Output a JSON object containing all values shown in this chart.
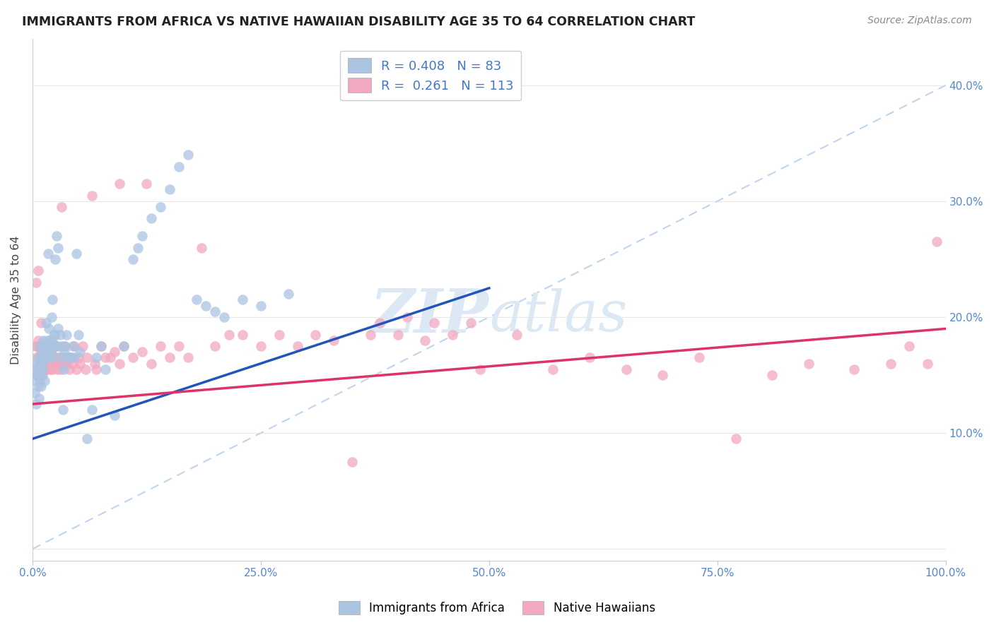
{
  "title": "IMMIGRANTS FROM AFRICA VS NATIVE HAWAIIAN DISABILITY AGE 35 TO 64 CORRELATION CHART",
  "source": "Source: ZipAtlas.com",
  "ylabel": "Disability Age 35 to 64",
  "legend_label1": "Immigrants from Africa",
  "legend_label2": "Native Hawaiians",
  "r1": 0.408,
  "n1": 83,
  "r2": 0.261,
  "n2": 113,
  "color_blue": "#aac4e2",
  "color_pink": "#f2a8c0",
  "line_blue": "#2255bb",
  "line_pink": "#dd3366",
  "diagonal_color": "#c0d4ee",
  "watermark_color": "#dde8f5",
  "background": "#ffffff",
  "grid_color": "#dde8f0",
  "xlim": [
    0,
    1.0
  ],
  "ylim": [
    -0.01,
    0.44
  ],
  "ytick_vals": [
    0.0,
    0.1,
    0.2,
    0.3,
    0.4
  ],
  "ytick_labels": [
    "",
    "10.0%",
    "20.0%",
    "30.0%",
    "40.0%"
  ],
  "xtick_vals": [
    0.0,
    0.25,
    0.5,
    0.75,
    1.0
  ],
  "xtick_labels": [
    "0.0%",
    "25.0%",
    "50.0%",
    "75.0%",
    "100.0%"
  ],
  "blue_line_x0": 0.0,
  "blue_line_y0": 0.095,
  "blue_line_x1": 0.5,
  "blue_line_y1": 0.225,
  "pink_line_x0": 0.0,
  "pink_line_y0": 0.125,
  "pink_line_x1": 1.0,
  "pink_line_y1": 0.19,
  "blue_pts": [
    [
      0.002,
      0.135
    ],
    [
      0.003,
      0.145
    ],
    [
      0.004,
      0.125
    ],
    [
      0.004,
      0.155
    ],
    [
      0.005,
      0.15
    ],
    [
      0.005,
      0.16
    ],
    [
      0.006,
      0.14
    ],
    [
      0.006,
      0.165
    ],
    [
      0.007,
      0.13
    ],
    [
      0.007,
      0.155
    ],
    [
      0.008,
      0.145
    ],
    [
      0.008,
      0.175
    ],
    [
      0.009,
      0.14
    ],
    [
      0.009,
      0.16
    ],
    [
      0.01,
      0.15
    ],
    [
      0.01,
      0.17
    ],
    [
      0.011,
      0.16
    ],
    [
      0.011,
      0.155
    ],
    [
      0.012,
      0.165
    ],
    [
      0.012,
      0.18
    ],
    [
      0.013,
      0.175
    ],
    [
      0.013,
      0.145
    ],
    [
      0.014,
      0.17
    ],
    [
      0.015,
      0.195
    ],
    [
      0.015,
      0.165
    ],
    [
      0.016,
      0.18
    ],
    [
      0.017,
      0.255
    ],
    [
      0.017,
      0.17
    ],
    [
      0.018,
      0.165
    ],
    [
      0.018,
      0.19
    ],
    [
      0.019,
      0.175
    ],
    [
      0.019,
      0.18
    ],
    [
      0.02,
      0.17
    ],
    [
      0.02,
      0.165
    ],
    [
      0.021,
      0.2
    ],
    [
      0.022,
      0.215
    ],
    [
      0.022,
      0.18
    ],
    [
      0.023,
      0.185
    ],
    [
      0.024,
      0.175
    ],
    [
      0.025,
      0.185
    ],
    [
      0.025,
      0.25
    ],
    [
      0.026,
      0.27
    ],
    [
      0.027,
      0.175
    ],
    [
      0.028,
      0.26
    ],
    [
      0.028,
      0.19
    ],
    [
      0.03,
      0.165
    ],
    [
      0.03,
      0.185
    ],
    [
      0.032,
      0.175
    ],
    [
      0.033,
      0.12
    ],
    [
      0.034,
      0.155
    ],
    [
      0.035,
      0.17
    ],
    [
      0.036,
      0.175
    ],
    [
      0.037,
      0.185
    ],
    [
      0.038,
      0.165
    ],
    [
      0.04,
      0.165
    ],
    [
      0.042,
      0.165
    ],
    [
      0.044,
      0.175
    ],
    [
      0.046,
      0.165
    ],
    [
      0.048,
      0.255
    ],
    [
      0.05,
      0.185
    ],
    [
      0.052,
      0.17
    ],
    [
      0.06,
      0.095
    ],
    [
      0.065,
      0.12
    ],
    [
      0.07,
      0.165
    ],
    [
      0.075,
      0.175
    ],
    [
      0.08,
      0.155
    ],
    [
      0.09,
      0.115
    ],
    [
      0.1,
      0.175
    ],
    [
      0.11,
      0.25
    ],
    [
      0.115,
      0.26
    ],
    [
      0.12,
      0.27
    ],
    [
      0.13,
      0.285
    ],
    [
      0.14,
      0.295
    ],
    [
      0.15,
      0.31
    ],
    [
      0.16,
      0.33
    ],
    [
      0.17,
      0.34
    ],
    [
      0.18,
      0.215
    ],
    [
      0.19,
      0.21
    ],
    [
      0.2,
      0.205
    ],
    [
      0.21,
      0.2
    ],
    [
      0.23,
      0.215
    ],
    [
      0.25,
      0.21
    ],
    [
      0.28,
      0.22
    ]
  ],
  "pink_pts": [
    [
      0.002,
      0.155
    ],
    [
      0.003,
      0.175
    ],
    [
      0.004,
      0.165
    ],
    [
      0.004,
      0.23
    ],
    [
      0.005,
      0.15
    ],
    [
      0.005,
      0.175
    ],
    [
      0.006,
      0.18
    ],
    [
      0.006,
      0.24
    ],
    [
      0.007,
      0.165
    ],
    [
      0.007,
      0.16
    ],
    [
      0.008,
      0.175
    ],
    [
      0.008,
      0.155
    ],
    [
      0.009,
      0.17
    ],
    [
      0.009,
      0.195
    ],
    [
      0.01,
      0.165
    ],
    [
      0.01,
      0.175
    ],
    [
      0.011,
      0.155
    ],
    [
      0.011,
      0.15
    ],
    [
      0.012,
      0.165
    ],
    [
      0.012,
      0.17
    ],
    [
      0.013,
      0.175
    ],
    [
      0.013,
      0.155
    ],
    [
      0.014,
      0.165
    ],
    [
      0.014,
      0.175
    ],
    [
      0.015,
      0.16
    ],
    [
      0.015,
      0.165
    ],
    [
      0.016,
      0.155
    ],
    [
      0.016,
      0.175
    ],
    [
      0.017,
      0.16
    ],
    [
      0.018,
      0.165
    ],
    [
      0.019,
      0.16
    ],
    [
      0.019,
      0.155
    ],
    [
      0.02,
      0.17
    ],
    [
      0.02,
      0.165
    ],
    [
      0.022,
      0.155
    ],
    [
      0.022,
      0.16
    ],
    [
      0.024,
      0.165
    ],
    [
      0.024,
      0.175
    ],
    [
      0.025,
      0.16
    ],
    [
      0.026,
      0.165
    ],
    [
      0.027,
      0.155
    ],
    [
      0.027,
      0.175
    ],
    [
      0.028,
      0.16
    ],
    [
      0.029,
      0.165
    ],
    [
      0.03,
      0.16
    ],
    [
      0.03,
      0.155
    ],
    [
      0.032,
      0.295
    ],
    [
      0.033,
      0.165
    ],
    [
      0.034,
      0.16
    ],
    [
      0.035,
      0.175
    ],
    [
      0.036,
      0.165
    ],
    [
      0.038,
      0.16
    ],
    [
      0.04,
      0.155
    ],
    [
      0.042,
      0.165
    ],
    [
      0.044,
      0.16
    ],
    [
      0.046,
      0.175
    ],
    [
      0.048,
      0.155
    ],
    [
      0.05,
      0.165
    ],
    [
      0.052,
      0.16
    ],
    [
      0.055,
      0.175
    ],
    [
      0.058,
      0.155
    ],
    [
      0.06,
      0.165
    ],
    [
      0.065,
      0.305
    ],
    [
      0.068,
      0.16
    ],
    [
      0.07,
      0.155
    ],
    [
      0.075,
      0.175
    ],
    [
      0.08,
      0.165
    ],
    [
      0.085,
      0.165
    ],
    [
      0.09,
      0.17
    ],
    [
      0.095,
      0.16
    ],
    [
      0.1,
      0.175
    ],
    [
      0.11,
      0.165
    ],
    [
      0.12,
      0.17
    ],
    [
      0.13,
      0.16
    ],
    [
      0.14,
      0.175
    ],
    [
      0.15,
      0.165
    ],
    [
      0.16,
      0.175
    ],
    [
      0.17,
      0.165
    ],
    [
      0.185,
      0.26
    ],
    [
      0.2,
      0.175
    ],
    [
      0.215,
      0.185
    ],
    [
      0.23,
      0.185
    ],
    [
      0.25,
      0.175
    ],
    [
      0.27,
      0.185
    ],
    [
      0.29,
      0.175
    ],
    [
      0.31,
      0.185
    ],
    [
      0.33,
      0.18
    ],
    [
      0.35,
      0.075
    ],
    [
      0.37,
      0.185
    ],
    [
      0.4,
      0.185
    ],
    [
      0.43,
      0.18
    ],
    [
      0.46,
      0.185
    ],
    [
      0.49,
      0.155
    ],
    [
      0.53,
      0.185
    ],
    [
      0.57,
      0.155
    ],
    [
      0.61,
      0.165
    ],
    [
      0.65,
      0.155
    ],
    [
      0.69,
      0.15
    ],
    [
      0.73,
      0.165
    ],
    [
      0.77,
      0.095
    ],
    [
      0.81,
      0.15
    ],
    [
      0.85,
      0.16
    ],
    [
      0.9,
      0.155
    ],
    [
      0.94,
      0.16
    ],
    [
      0.96,
      0.175
    ],
    [
      0.98,
      0.16
    ],
    [
      0.38,
      0.195
    ],
    [
      0.41,
      0.2
    ],
    [
      0.44,
      0.195
    ],
    [
      0.48,
      0.195
    ],
    [
      0.99,
      0.265
    ],
    [
      0.095,
      0.315
    ],
    [
      0.125,
      0.315
    ]
  ]
}
